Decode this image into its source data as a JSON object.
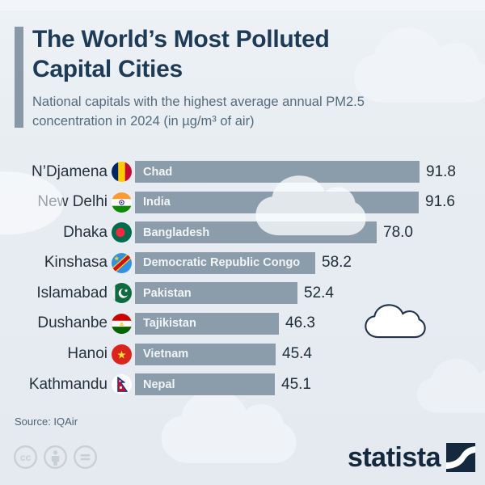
{
  "header": {
    "title_line1": "The World’s Most Polluted",
    "title_line2": "Capital Cities",
    "subtitle_line1": "National capitals with the highest average annual PM2.5",
    "subtitle_line2": "concentration in 2024 (in µg/m³ of air)"
  },
  "chart_data": {
    "type": "bar",
    "orientation": "horizontal",
    "title": "The World’s Most Polluted Capital Cities",
    "value_unit": "µg/m³ of air (average annual PM2.5, 2024)",
    "xlim": [
      0,
      95
    ],
    "grid": false,
    "legend": false,
    "rows": [
      {
        "city": "N’Djamena",
        "country": "Chad",
        "flag": "chad",
        "value": 91.8
      },
      {
        "city": "New Delhi",
        "country": "India",
        "flag": "india",
        "value": 91.6
      },
      {
        "city": "Dhaka",
        "country": "Bangladesh",
        "flag": "bangladesh",
        "value": 78.0
      },
      {
        "city": "Kinshasa",
        "country": "Democratic Republic Congo",
        "flag": "drcongo",
        "value": 58.2
      },
      {
        "city": "Islamabad",
        "country": "Pakistan",
        "flag": "pakistan",
        "value": 52.4
      },
      {
        "city": "Dushanbe",
        "country": "Tajikistan",
        "flag": "tajikistan",
        "value": 46.3
      },
      {
        "city": "Hanoi",
        "country": "Vietnam",
        "flag": "vietnam",
        "value": 45.4
      },
      {
        "city": "Kathmandu",
        "country": "Nepal",
        "flag": "nepal",
        "value": 45.1
      }
    ]
  },
  "footer": {
    "source": "Source: IQAir",
    "brand_wordmark": "statista",
    "license_icons": [
      "cc-icon",
      "attribution-icon",
      "no-derivatives-icon"
    ]
  },
  "colors": {
    "background": "#E8EDF2",
    "bar": "#8B9CAA",
    "bar_label": "#F2F5F7",
    "title": "#1D3A56",
    "subtitle": "#546B7E",
    "accent_bar": "#8799A7",
    "city_text": "#25323E",
    "value_text": "#202E3B",
    "brand_navy": "#15293E",
    "cloud_outline": "#233249",
    "license_gray": "#C7CFD7"
  }
}
